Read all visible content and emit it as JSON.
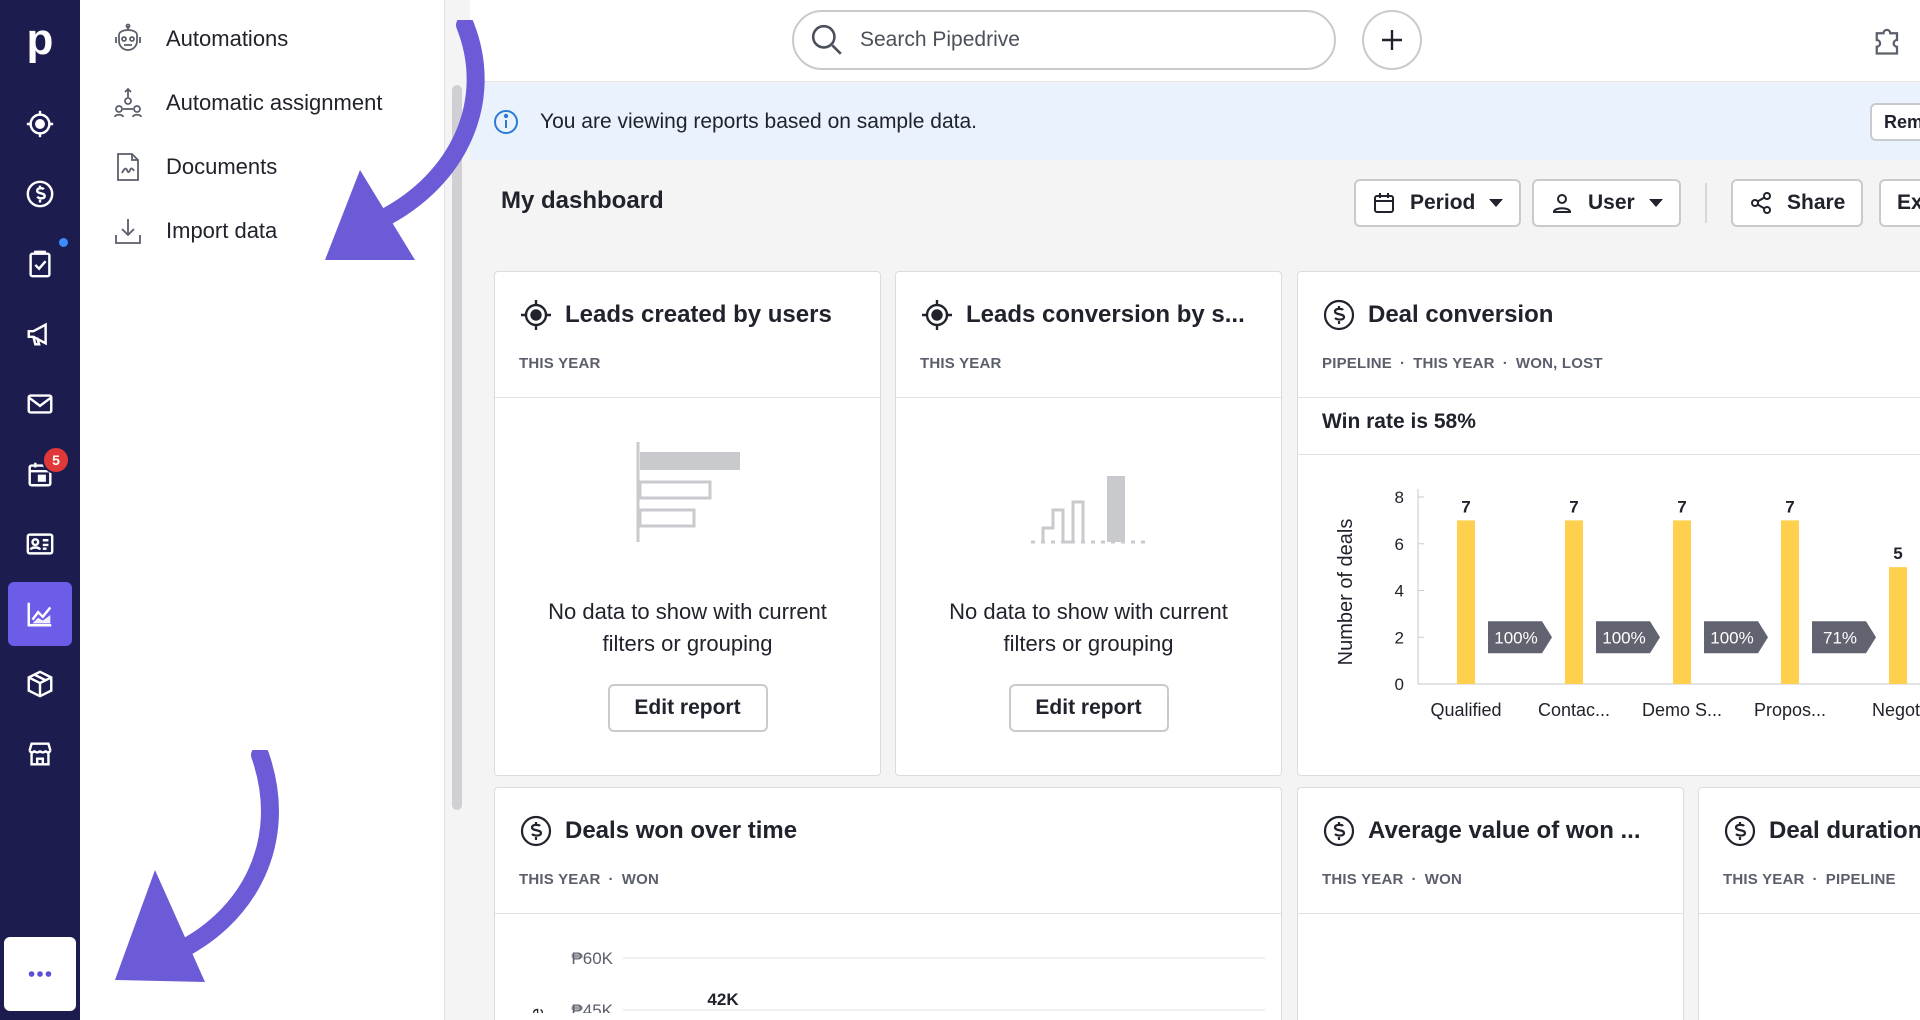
{
  "rail": {
    "logo": "p",
    "items": [
      {
        "name": "leads-icon"
      },
      {
        "name": "deals-icon"
      },
      {
        "name": "activities-icon",
        "dot": true
      },
      {
        "name": "campaigns-icon"
      },
      {
        "name": "mail-icon"
      },
      {
        "name": "calendar-icon",
        "badge": "5"
      },
      {
        "name": "contacts-icon"
      },
      {
        "name": "insights-icon",
        "active": true
      },
      {
        "name": "products-icon"
      },
      {
        "name": "marketplace-icon"
      }
    ],
    "more_label": "..."
  },
  "flyout": {
    "items": [
      {
        "label": "Automations",
        "icon": "robot-icon"
      },
      {
        "label": "Automatic assignment",
        "icon": "assignment-icon"
      },
      {
        "label": "Documents",
        "icon": "document-icon"
      },
      {
        "label": "Import data",
        "icon": "import-icon"
      }
    ]
  },
  "topbar": {
    "search_placeholder": "Search Pipedrive"
  },
  "banner": {
    "text": "You are viewing reports based on sample data.",
    "button_label": "Rem"
  },
  "dashboard": {
    "title": "My dashboard",
    "period_label": "Period",
    "user_label": "User",
    "share_label": "Share",
    "export_label": "Ex"
  },
  "cards": {
    "leads_created": {
      "title": "Leads created by users",
      "filters": [
        "THIS YEAR"
      ],
      "empty_line1": "No data to show with current",
      "empty_line2": "filters or grouping",
      "edit_label": "Edit report"
    },
    "leads_conversion": {
      "title": "Leads conversion by s...",
      "filters": [
        "THIS YEAR"
      ],
      "empty_line1": "No data to show with current",
      "empty_line2": "filters or grouping",
      "edit_label": "Edit report"
    },
    "deal_conversion": {
      "title": "Deal conversion",
      "filter1": "PIPELINE",
      "filter2": "THIS YEAR",
      "filter3": "WON, LOST",
      "win_rate": "Win rate is 58%"
    },
    "deals_won": {
      "title": "Deals won over time",
      "filter1": "THIS YEAR",
      "filter2": "WON",
      "ylabel_partial": "ue",
      "first_value_label": "42K"
    },
    "average_value": {
      "title": "Average value of won ...",
      "filter1": "THIS YEAR",
      "filter2": "WON"
    },
    "deal_duration": {
      "title": "Deal duration",
      "filter1": "THIS YEAR",
      "filter2": "PIPELINE"
    }
  },
  "chart_data": [
    {
      "type": "bar",
      "ylabel": "Number of deals",
      "ylim": [
        0,
        8
      ],
      "yticks": [
        0,
        2,
        4,
        6,
        8
      ],
      "categories": [
        "Qualified",
        "Contac...",
        "Demo S...",
        "Propos...",
        "Negoti"
      ],
      "values": [
        7,
        7,
        7,
        7,
        5
      ],
      "conversion_labels": [
        "100%",
        "100%",
        "100%",
        "71%"
      ],
      "bar_color": "#ffd04d",
      "grid": false
    },
    {
      "type": "line",
      "ylabel": "ue",
      "yticks": [
        "₱60K",
        "₱45K"
      ],
      "yvalues": [
        60000,
        45000
      ],
      "annotations": [
        "42K"
      ]
    }
  ]
}
